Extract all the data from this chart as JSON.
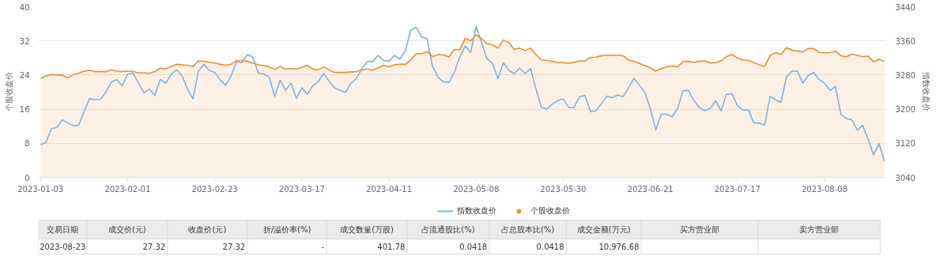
{
  "chart_data": {
    "type": "line",
    "categories": [
      "2023-01-03",
      null,
      null,
      null,
      null,
      null,
      null,
      null,
      null,
      null,
      null,
      null,
      null,
      null,
      null,
      null,
      "2023-02-01",
      null,
      null,
      null,
      null,
      null,
      null,
      null,
      null,
      null,
      null,
      null,
      null,
      null,
      null,
      null,
      "2023-02-23",
      null,
      null,
      null,
      null,
      null,
      null,
      null,
      null,
      null,
      null,
      null,
      null,
      null,
      null,
      null,
      "2023-03-17",
      null,
      null,
      null,
      null,
      null,
      null,
      null,
      null,
      null,
      null,
      null,
      null,
      null,
      null,
      null,
      "2023-04-11",
      null,
      null,
      null,
      null,
      null,
      null,
      null,
      null,
      null,
      null,
      null,
      null,
      null,
      null,
      null,
      "2023-05-08",
      null,
      null,
      null,
      null,
      null,
      null,
      null,
      null,
      null,
      null,
      null,
      null,
      null,
      null,
      null,
      "2023-05-30",
      null,
      null,
      null,
      null,
      null,
      null,
      null,
      null,
      null,
      null,
      null,
      null,
      null,
      null,
      null,
      "2023-06-21",
      null,
      null,
      null,
      null,
      null,
      null,
      null,
      null,
      null,
      null,
      null,
      null,
      null,
      null,
      null,
      "2023-07-17",
      null,
      null,
      null,
      null,
      null,
      null,
      null,
      null,
      null,
      null,
      null,
      null,
      null,
      null,
      null,
      "2023-08-08",
      null,
      null,
      null,
      null,
      null,
      null,
      null,
      null,
      null,
      null,
      null
    ],
    "series": [
      {
        "name": "指数收盘价",
        "axis": "y2",
        "color": "#7ab3e0",
        "values": [
          3116,
          3122,
          3154,
          3157,
          3175,
          3168,
          3161,
          3162,
          3194,
          3225,
          3222,
          3223,
          3240,
          3263,
          3269,
          3255,
          3282,
          3284,
          3261,
          3238,
          3247,
          3232,
          3270,
          3260,
          3282,
          3292,
          3278,
          3247,
          3224,
          3289,
          3305,
          3291,
          3286,
          3268,
          3256,
          3278,
          3311,
          3309,
          3328,
          3322,
          3284,
          3282,
          3275,
          3230,
          3268,
          3244,
          3261,
          3225,
          3250,
          3235,
          3255,
          3264,
          3284,
          3265,
          3250,
          3244,
          3239,
          3260,
          3272,
          3294,
          3311,
          3311,
          3326,
          3314,
          3312,
          3326,
          3317,
          3337,
          3385,
          3392,
          3369,
          3365,
          3300,
          3275,
          3264,
          3263,
          3286,
          3322,
          3348,
          3333,
          3393,
          3356,
          3318,
          3308,
          3271,
          3309,
          3291,
          3283,
          3296,
          3283,
          3295,
          3247,
          3204,
          3201,
          3212,
          3220,
          3224,
          3204,
          3204,
          3229,
          3232,
          3194,
          3196,
          3212,
          3230,
          3227,
          3233,
          3229,
          3250,
          3272,
          3256,
          3239,
          3201,
          3151,
          3188,
          3188,
          3182,
          3201,
          3243,
          3244,
          3220,
          3204,
          3196,
          3202,
          3219,
          3196,
          3235,
          3236,
          3208,
          3198,
          3198,
          3168,
          3167,
          3163,
          3230,
          3222,
          3216,
          3275,
          3289,
          3289,
          3261,
          3279,
          3286,
          3269,
          3260,
          3244,
          3253,
          3188,
          3178,
          3175,
          3151,
          3162,
          3129,
          3093,
          3119,
          3078
        ]
      },
      {
        "name": "个股收盘价",
        "type": "area",
        "color": "#f28c2c",
        "values": [
          23.2,
          23.8,
          24.1,
          24.0,
          24.0,
          23.3,
          24.1,
          24.4,
          24.9,
          25.1,
          24.8,
          24.8,
          24.8,
          25.2,
          24.9,
          24.8,
          24.9,
          24.8,
          24.5,
          24.5,
          24.4,
          24.8,
          25.6,
          25.4,
          26.0,
          26.5,
          26.4,
          26.3,
          26.0,
          27.3,
          27.2,
          27.0,
          26.8,
          26.5,
          26.3,
          26.5,
          27.4,
          27.4,
          27.2,
          26.8,
          26.4,
          26.2,
          25.9,
          25.3,
          26.0,
          25.4,
          25.5,
          25.4,
          25.8,
          26.3,
          25.4,
          25.2,
          25.9,
          25.2,
          24.6,
          24.6,
          24.6,
          24.7,
          24.8,
          25.2,
          25.4,
          25.1,
          25.7,
          26.3,
          25.9,
          26.4,
          26.5,
          26.5,
          27.5,
          29.0,
          29.0,
          29.5,
          28.3,
          28.8,
          28.7,
          28.2,
          30.0,
          29.9,
          32.6,
          32.0,
          33.4,
          32.5,
          31.3,
          31.1,
          30.3,
          32.2,
          31.6,
          30.0,
          30.3,
          29.7,
          30.3,
          28.8,
          27.5,
          27.4,
          27.2,
          26.9,
          26.9,
          26.7,
          27.0,
          27.3,
          27.3,
          28.1,
          28.2,
          28.5,
          28.6,
          28.6,
          28.6,
          28.5,
          27.5,
          27.2,
          26.7,
          26.2,
          25.7,
          24.9,
          25.5,
          25.9,
          26.1,
          25.9,
          27.1,
          27.2,
          27.0,
          27.2,
          27.3,
          26.8,
          26.9,
          27.3,
          28.3,
          28.8,
          28.0,
          27.5,
          27.4,
          26.9,
          26.4,
          26.0,
          28.6,
          29.2,
          28.8,
          30.4,
          29.8,
          29.6,
          29.4,
          30.2,
          30.2,
          29.3,
          29.2,
          29.2,
          29.6,
          28.5,
          28.3,
          28.9,
          28.6,
          28.3,
          28.4,
          27.1,
          27.7,
          27.2
        ]
      }
    ],
    "ylabel": "个股收盘价",
    "y2label": "指数收盘价",
    "ylim": [
      0,
      40
    ],
    "yticks": [
      0,
      8,
      16,
      24,
      32,
      40
    ],
    "y2lim": [
      3040,
      3440
    ],
    "y2ticks": [
      3040,
      3120,
      3200,
      3280,
      3360,
      3440
    ],
    "grid": "y",
    "legend": "bottom",
    "annotations": [
      "交易日期",
      "成交价(元)",
      "收盘价(元)",
      "折/溢价率(%)",
      "成交数量(万股)",
      "占流通股比(%)",
      "占总股本比(%)",
      "成交金额(万元)",
      "买方营业部",
      "卖方营业部",
      "2023-08-23",
      "27.32",
      "27.32",
      "-",
      "401.78",
      "0.0418",
      "0.0418",
      "10,976.68"
    ]
  }
}
